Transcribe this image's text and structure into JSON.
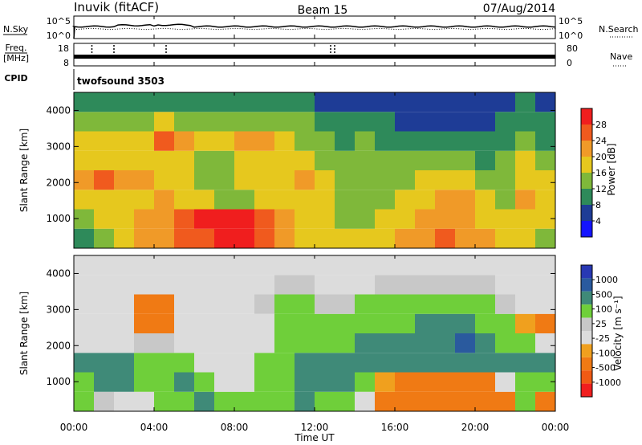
{
  "header": {
    "station": "Inuvik (fitACF)",
    "beam": "Beam 15",
    "date": "07/Aug/2014"
  },
  "strips": {
    "nsky_label": "N.Sky",
    "nsearch_label": "N.Search",
    "noise_ticks_left": [
      "10^5",
      "10^0"
    ],
    "noise_ticks_right": [
      "10^5",
      "10^0"
    ],
    "freq_label_line1": "Freq.",
    "freq_label_line2": "[MHz]",
    "freq_ticks": [
      "18",
      "8"
    ],
    "nave_label": "Nave",
    "nave_ticks": [
      "80",
      "0"
    ],
    "cpid_label": "CPID",
    "cpid_value": "twofsound 3503"
  },
  "colors": {
    "power_scale": [
      "#1414ff",
      "#1e3c96",
      "#2e8a5a",
      "#7fb83a",
      "#e6c81e",
      "#f09a28",
      "#f05a1e",
      "#f01e1e"
    ],
    "velocity_scale": [
      "#2838b4",
      "#2a5a9e",
      "#3f8a78",
      "#6fcf3a",
      "#c8c8c8",
      "#dcdcdc",
      "#f0a01e",
      "#f07a14",
      "#f05a14",
      "#f01e1e"
    ]
  },
  "chart_data": [
    {
      "type": "heatmap",
      "title": "",
      "xlabel": "Time UT",
      "ylabel": "Slant Range [km]",
      "xlim": [
        "00:00",
        "24:00"
      ],
      "ylim": [
        180,
        4500
      ],
      "x_ticks": [
        "00:00",
        "04:00",
        "08:00",
        "12:00",
        "16:00",
        "20:00",
        "00:00"
      ],
      "y_ticks": [
        1000,
        2000,
        3000,
        4000
      ],
      "colorbar": {
        "label": "Power [dB]",
        "ticks": [
          "4",
          "8",
          "12",
          "16",
          "20",
          "24",
          "28"
        ],
        "range": [
          0,
          32
        ]
      },
      "x": [
        0,
        1,
        2,
        3,
        4,
        5,
        6,
        7,
        8,
        9,
        10,
        11,
        12,
        13,
        14,
        15,
        16,
        17,
        18,
        19,
        20,
        21,
        22,
        23
      ],
      "y": [
        250,
        750,
        1250,
        1750,
        2250,
        2750,
        3250,
        3750
      ],
      "z": [
        [
          10,
          14,
          18,
          20,
          22,
          24,
          26,
          30,
          30,
          26,
          22,
          18,
          16,
          16,
          16,
          18,
          20,
          22,
          24,
          22,
          20,
          18,
          16,
          14
        ],
        [
          14,
          16,
          18,
          20,
          22,
          26,
          28,
          28,
          28,
          24,
          20,
          18,
          16,
          14,
          14,
          16,
          18,
          20,
          22,
          20,
          18,
          16,
          18,
          16
        ],
        [
          16,
          16,
          18,
          18,
          20,
          18,
          16,
          14,
          14,
          16,
          16,
          18,
          16,
          14,
          14,
          14,
          16,
          18,
          20,
          20,
          16,
          14,
          20,
          18
        ],
        [
          22,
          24,
          22,
          20,
          18,
          18,
          14,
          14,
          16,
          16,
          18,
          20,
          16,
          14,
          14,
          14,
          14,
          16,
          18,
          18,
          14,
          12,
          18,
          16
        ],
        [
          18,
          18,
          18,
          18,
          18,
          18,
          14,
          14,
          16,
          16,
          18,
          18,
          14,
          12,
          14,
          12,
          12,
          14,
          12,
          12,
          10,
          12,
          16,
          14
        ],
        [
          16,
          18,
          18,
          18,
          24,
          22,
          16,
          18,
          22,
          20,
          18,
          14,
          12,
          10,
          12,
          10,
          10,
          10,
          8,
          8,
          8,
          10,
          12,
          10
        ],
        [
          12,
          12,
          14,
          14,
          16,
          14,
          12,
          12,
          14,
          14,
          12,
          12,
          10,
          8,
          8,
          8,
          6,
          6,
          6,
          6,
          6,
          8,
          10,
          8
        ],
        [
          8,
          10,
          10,
          10,
          10,
          10,
          8,
          8,
          8,
          8,
          8,
          8,
          6,
          6,
          6,
          4,
          4,
          4,
          4,
          4,
          4,
          6,
          8,
          6
        ]
      ]
    },
    {
      "type": "heatmap",
      "title": "",
      "xlabel": "Time UT",
      "ylabel": "Slant Range [km]",
      "xlim": [
        "00:00",
        "24:00"
      ],
      "ylim": [
        180,
        4500
      ],
      "x_ticks": [
        "00:00",
        "04:00",
        "08:00",
        "12:00",
        "16:00",
        "20:00",
        "00:00"
      ],
      "y_ticks": [
        1000,
        2000,
        3000,
        4000
      ],
      "colorbar": {
        "label": "Velocity [m s⁻¹]",
        "ticks": [
          "1000",
          "500",
          "100",
          "25",
          "-25",
          "-100",
          "-500",
          "-1000"
        ]
      },
      "x": [
        0,
        1,
        2,
        3,
        4,
        5,
        6,
        7,
        8,
        9,
        10,
        11,
        12,
        13,
        14,
        15,
        16,
        17,
        18,
        19,
        20,
        21,
        22,
        23
      ],
      "y": [
        250,
        750,
        1250,
        1750,
        2250,
        2750,
        3250,
        3750
      ],
      "z": [
        [
          50,
          20,
          0,
          0,
          50,
          100,
          150,
          100,
          50,
          50,
          100,
          150,
          100,
          50,
          0,
          -100,
          -200,
          -300,
          -400,
          -300,
          -200,
          -100,
          50,
          -300
        ],
        [
          100,
          150,
          150,
          100,
          100,
          150,
          100,
          0,
          0,
          50,
          100,
          150,
          200,
          200,
          100,
          -50,
          -150,
          -200,
          -250,
          -150,
          -100,
          0,
          100,
          50
        ],
        [
          200,
          200,
          150,
          100,
          100,
          50,
          0,
          0,
          0,
          50,
          100,
          150,
          150,
          200,
          200,
          150,
          200,
          200,
          300,
          500,
          400,
          300,
          200,
          150
        ],
        [
          0,
          0,
          0,
          10,
          20,
          0,
          0,
          0,
          0,
          0,
          50,
          100,
          100,
          100,
          150,
          150,
          200,
          200,
          500,
          600,
          300,
          100,
          50,
          0
        ],
        [
          -20,
          0,
          0,
          -200,
          -400,
          0,
          0,
          0,
          0,
          0,
          50,
          100,
          50,
          50,
          100,
          50,
          100,
          150,
          300,
          200,
          100,
          50,
          -50,
          -100
        ],
        [
          0,
          0,
          0,
          -100,
          -300,
          0,
          0,
          0,
          0,
          20,
          50,
          50,
          20,
          20,
          50,
          50,
          50,
          50,
          50,
          50,
          50,
          20,
          0,
          -20
        ],
        [
          0,
          0,
          0,
          0,
          0,
          0,
          0,
          0,
          0,
          0,
          20,
          20,
          0,
          0,
          0,
          20,
          20,
          20,
          20,
          20,
          20,
          0,
          0,
          0
        ],
        [
          0,
          0,
          0,
          0,
          0,
          0,
          0,
          0,
          0,
          0,
          0,
          0,
          0,
          0,
          0,
          0,
          0,
          0,
          0,
          0,
          0,
          0,
          0,
          0
        ]
      ]
    }
  ]
}
